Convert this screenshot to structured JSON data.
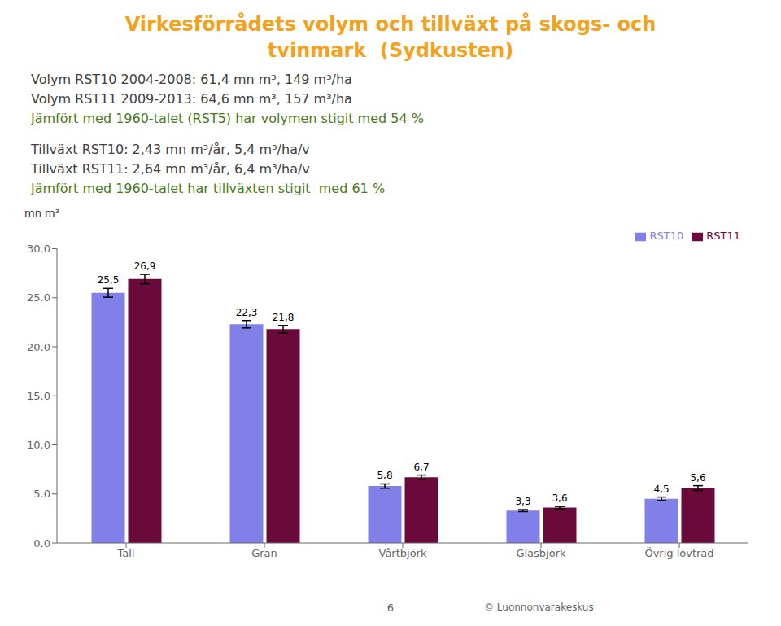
{
  "chart_data": {
    "type": "bar",
    "title": "Virkesförrådets volym och tillväxt på skogs- och\ntvinmark  (Sydkusten)",
    "title_color": "#F4A020",
    "annotations": [
      {
        "text": "Volym RST10 2004-2008: 61,4 mn m³, 149 m³/ha",
        "color": "#404040"
      },
      {
        "text": "Volym RST11 2009-2013: 64,6 mn m³, 157 m³/ha",
        "color": "#404040"
      },
      {
        "text": "Jämfört med 1960-talet (RST5) har volymen stigit med 54 %",
        "color": "#4A7A1A"
      },
      {
        "text": "Tillväxt RST10: 2,43 mn m³/år, 5,4 m³/ha/v",
        "color": "#404040"
      },
      {
        "text": "Tillväxt RST11: 2,64 mn m³/år, 6,4 m³/ha/v",
        "color": "#404040"
      },
      {
        "text": "Jämfört med 1960-talet har tillväxten stigit  med 61 %",
        "color": "#4A7A1A"
      }
    ],
    "footer": [
      "6",
      "© Luonnonvarakeskus"
    ],
    "y_label": "mn m³",
    "categories": [
      "Tall",
      "Gran",
      "Vårtbjörk",
      "Glasbjörk",
      "Övrig lövträd"
    ],
    "series": [
      {
        "name": "RST10",
        "color": "#8080E8",
        "values": [
          25.5,
          22.3,
          5.8,
          3.3,
          4.5
        ],
        "value_labels": [
          "25,5",
          "22,3",
          "5,8",
          "3,3",
          "4,5"
        ],
        "errors": [
          0.45,
          0.38,
          0.22,
          0.1,
          0.18
        ]
      },
      {
        "name": "RST11",
        "color": "#6B0A3A",
        "values": [
          26.9,
          21.8,
          6.7,
          3.6,
          5.6
        ],
        "value_labels": [
          "26,9",
          "21,8",
          "6,7",
          "3,6",
          "5,6"
        ],
        "errors": [
          0.48,
          0.38,
          0.22,
          0.12,
          0.24
        ]
      }
    ],
    "ylim": [
      0,
      30
    ],
    "yticks": [
      {
        "value": 0,
        "label": "0.0"
      },
      {
        "value": 5,
        "label": "5.0"
      },
      {
        "value": 10,
        "label": "10.0"
      },
      {
        "value": 15,
        "label": "15.0"
      },
      {
        "value": 20,
        "label": "20.0"
      },
      {
        "value": 25,
        "label": "25.0"
      },
      {
        "value": 30,
        "label": "30.0"
      }
    ],
    "grid": false,
    "legend": "upper right",
    "data_labels": true
  }
}
